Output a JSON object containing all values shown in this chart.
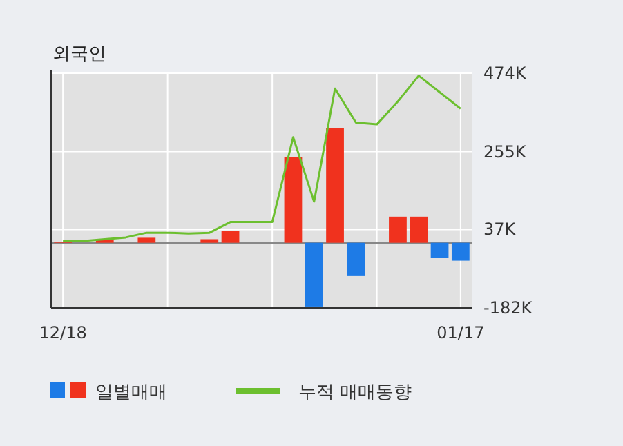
{
  "chart_data": {
    "type": "bar",
    "title": "외국인",
    "categories": [
      "12/18",
      null,
      null,
      null,
      null,
      null,
      null,
      null,
      null,
      null,
      null,
      null,
      null,
      null,
      null,
      null,
      null,
      null,
      null,
      "01/17"
    ],
    "series": [
      {
        "name": "일별매매",
        "values": [
          3000,
          0,
          10000,
          0,
          14000,
          0,
          0,
          10000,
          33000,
          0,
          0,
          239000,
          -178000,
          320000,
          -93000,
          0,
          73000,
          73000,
          -42000,
          -50000
        ],
        "colors": [
          "#f0321e",
          "#f0321e",
          "#f0321e",
          "#f0321e",
          "#f0321e",
          "#f0321e",
          "#f0321e",
          "#f0321e",
          "#f0321e",
          "#f0321e",
          "#f0321e",
          "#f0321e",
          "#1e7be6",
          "#f0321e",
          "#1e7be6",
          "#f0321e",
          "#f0321e",
          "#f0321e",
          "#1e7be6",
          "#1e7be6"
        ]
      },
      {
        "name": "누적 매매동향",
        "type": "line",
        "color": "#6cbf2f",
        "values": [
          5000,
          5000,
          10000,
          15000,
          28000,
          28000,
          26000,
          28000,
          58000,
          58000,
          58000,
          295000,
          115000,
          431000,
          336000,
          331000,
          395000,
          467000,
          421000,
          375000
        ]
      }
    ],
    "ylim": [
      -182000,
      474000
    ],
    "yticks": [
      {
        "value": -182000,
        "label": "-182K"
      },
      {
        "value": 37000,
        "label": "37K"
      },
      {
        "value": 255000,
        "label": "255K"
      },
      {
        "value": 474000,
        "label": "474K"
      }
    ],
    "grid": true,
    "legend": "bottom"
  }
}
